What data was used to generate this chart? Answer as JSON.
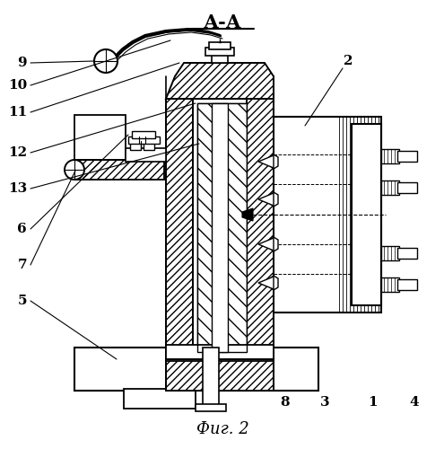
{
  "title": "А-А",
  "caption": "Фиг. 2",
  "bg": "#ffffff",
  "lc": "#000000"
}
